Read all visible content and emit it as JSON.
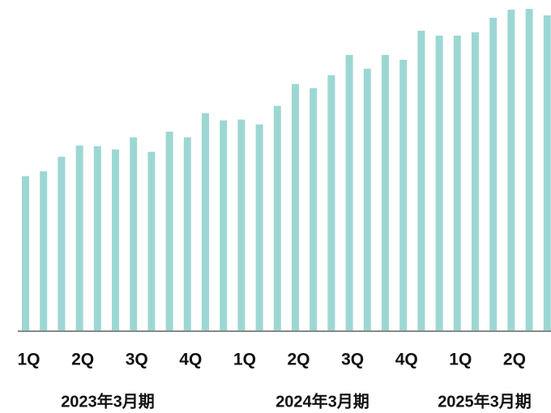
{
  "chart_data": {
    "type": "bar",
    "categories": [
      "1Q",
      null,
      null,
      "2Q",
      null,
      null,
      "3Q",
      null,
      null,
      "4Q",
      null,
      null,
      "1Q",
      null,
      null,
      "2Q",
      null,
      null,
      "3Q",
      null,
      null,
      "4Q",
      null,
      null,
      "1Q",
      null,
      null,
      "2Q",
      null,
      null
    ],
    "values": [
      191,
      197,
      215,
      229,
      228,
      224,
      239,
      221,
      246,
      239,
      269,
      260,
      261,
      255,
      278,
      305,
      300,
      316,
      341,
      324,
      341,
      335,
      371,
      365,
      365,
      369,
      387,
      397,
      398,
      390
    ],
    "color": "#9dd7d3",
    "ylim": [
      0,
      400
    ],
    "period_labels": [
      "2023年3月期",
      "2024年3月期",
      "2025年3月期"
    ]
  }
}
